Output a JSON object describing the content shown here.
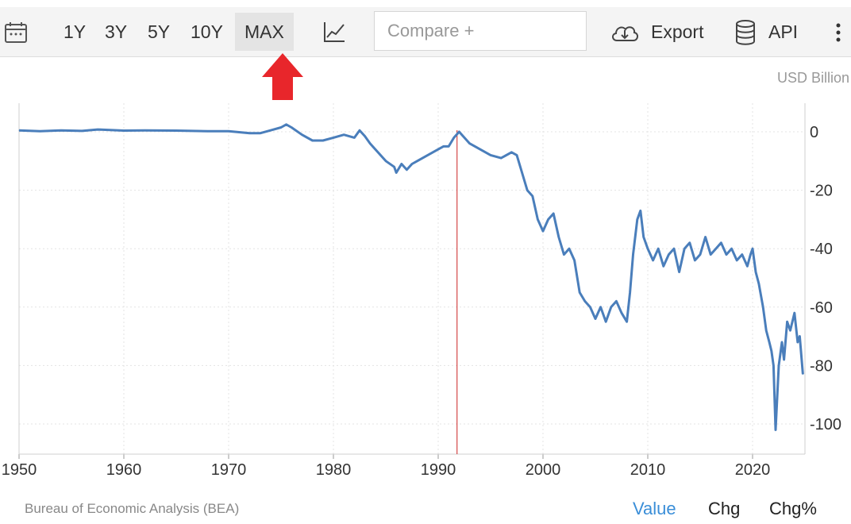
{
  "toolbar": {
    "calendar_icon": "calendar-icon",
    "ranges": [
      "1Y",
      "3Y",
      "5Y",
      "10Y",
      "MAX"
    ],
    "active_range": "MAX",
    "chart_type_icon": "line-chart-icon",
    "compare_placeholder": "Compare +",
    "export_label": "Export",
    "export_icon": "cloud-download-icon",
    "api_label": "API",
    "api_icon": "database-icon",
    "more_icon": "vertical-dots-icon"
  },
  "annotation": {
    "icon": "red-up-arrow-icon",
    "color": "#e8262b"
  },
  "unit_label": "USD Billion",
  "source": "Bureau of Economic Analysis (BEA)",
  "tabs": [
    "Value",
    "Chg",
    "Chg%"
  ],
  "active_tab": "Value",
  "colors": {
    "line": "#4a7ebb",
    "marker": "#cc2222",
    "active_tab": "#3a8ed8"
  },
  "chart_data": {
    "type": "line",
    "title": "",
    "xlabel": "",
    "ylabel": "",
    "xlim": [
      1950,
      2025
    ],
    "ylim": [
      -110,
      10
    ],
    "x_ticks": [
      1950,
      1960,
      1970,
      1980,
      1990,
      2000,
      2010,
      2020
    ],
    "y_ticks": [
      0,
      -20,
      -40,
      -60,
      -80,
      -100
    ],
    "grid": true,
    "marker_x": 1991.8,
    "series": [
      {
        "name": "",
        "x": [
          1950,
          1952,
          1954,
          1956,
          1957.5,
          1960,
          1962,
          1965,
          1968,
          1970,
          1972,
          1973,
          1974,
          1975,
          1975.5,
          1976,
          1977,
          1978,
          1979,
          1980,
          1981,
          1982,
          1982.5,
          1983,
          1983.5,
          1984,
          1985,
          1985.8,
          1986,
          1986.5,
          1987,
          1987.5,
          1988,
          1989,
          1990,
          1990.5,
          1991,
          1991.5,
          1992,
          1993,
          1994,
          1995,
          1996,
          1997,
          1997.5,
          1998,
          1998.5,
          1999,
          1999.5,
          2000,
          2000.5,
          2001,
          2001.5,
          2002,
          2002.5,
          2003,
          2003.5,
          2004,
          2004.5,
          2005,
          2005.5,
          2006,
          2006.5,
          2007,
          2007.5,
          2008,
          2008.3,
          2008.6,
          2009,
          2009.3,
          2009.6,
          2010,
          2010.5,
          2011,
          2011.5,
          2012,
          2012.5,
          2013,
          2013.5,
          2014,
          2014.5,
          2015,
          2015.5,
          2016,
          2016.5,
          2017,
          2017.5,
          2018,
          2018.5,
          2019,
          2019.5,
          2019.8,
          2020,
          2020.3,
          2020.6,
          2021,
          2021.3,
          2021.6,
          2021.8,
          2022,
          2022.2,
          2022.5,
          2022.8,
          2023,
          2023.3,
          2023.6,
          2024,
          2024.3,
          2024.5,
          2024.8
        ],
        "y": [
          0.5,
          0.2,
          0.5,
          0.3,
          0.8,
          0.4,
          0.5,
          0.4,
          0.2,
          0.2,
          -0.5,
          -0.5,
          0.5,
          1.5,
          2.5,
          1.5,
          -1.0,
          -3.0,
          -3.0,
          -2.0,
          -1.0,
          -2.0,
          0.5,
          -1.5,
          -4.0,
          -6.0,
          -10.0,
          -12.0,
          -14.0,
          -11.0,
          -13.0,
          -11.0,
          -10.0,
          -8.0,
          -6.0,
          -5.0,
          -5.0,
          -2.0,
          0.0,
          -4.0,
          -6.0,
          -8.0,
          -9.0,
          -7.0,
          -8.0,
          -14.0,
          -20.0,
          -22.0,
          -30.0,
          -34.0,
          -30.0,
          -28.0,
          -36.0,
          -42.0,
          -40.0,
          -44.0,
          -55.0,
          -58.0,
          -60.0,
          -64.0,
          -60.0,
          -65.0,
          -60.0,
          -58.0,
          -62.0,
          -65.0,
          -55.0,
          -42.0,
          -30.0,
          -27.0,
          -36.0,
          -40.0,
          -44.0,
          -40.0,
          -46.0,
          -42.0,
          -40.0,
          -48.0,
          -40.0,
          -38.0,
          -44.0,
          -42.0,
          -36.0,
          -42.0,
          -40.0,
          -38.0,
          -42.0,
          -40.0,
          -44.0,
          -42.0,
          -46.0,
          -42.0,
          -40.0,
          -48.0,
          -52.0,
          -60.0,
          -68.0,
          -72.0,
          -75.0,
          -80.0,
          -102.0,
          -80.0,
          -72.0,
          -78.0,
          -65.0,
          -68.0,
          -62.0,
          -72.0,
          -70.0,
          -83.0
        ]
      }
    ]
  }
}
